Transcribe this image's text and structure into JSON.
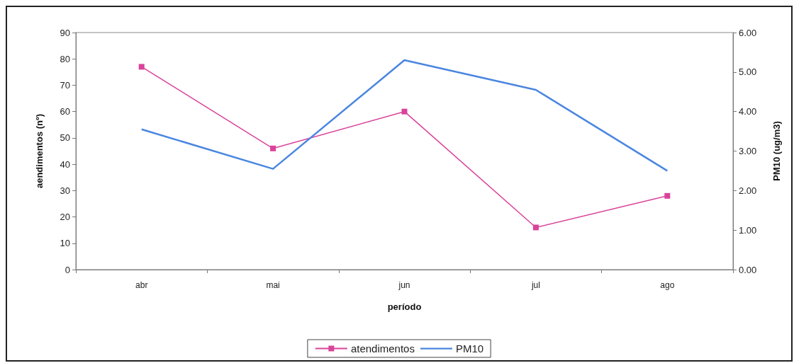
{
  "chart_data": {
    "type": "line",
    "xlabel": "período",
    "ylabel": "aendimentos (nº)",
    "y2label": "PM10 (ug/m3)",
    "categories": [
      "abr",
      "mai",
      "jun",
      "jul",
      "ago"
    ],
    "series": [
      {
        "name": "atendimentos",
        "color": "#d9439a",
        "values": [
          77,
          46,
          60,
          16,
          28
        ],
        "marker": "square"
      },
      {
        "name": "PM10",
        "color": "#4a86e0",
        "values": [
          3.55,
          2.55,
          5.3,
          4.55,
          2.5
        ],
        "axis": "y2",
        "marker": "none"
      }
    ],
    "ylim": [
      0,
      90
    ],
    "yticks": [
      0,
      10,
      20,
      30,
      40,
      50,
      60,
      70,
      80,
      90
    ],
    "y2lim": [
      0,
      6
    ],
    "y2ticks": [
      {
        "value": 0,
        "label": "0.00"
      },
      {
        "value": 1,
        "label": "1.00"
      },
      {
        "value": 2,
        "label": "2.00"
      },
      {
        "value": 3,
        "label": "3.00"
      },
      {
        "value": 4,
        "label": "4.00"
      },
      {
        "value": 5,
        "label": "5.00"
      },
      {
        "value": 6,
        "label": "6.00"
      }
    ],
    "grid": false,
    "legend": "bottom"
  }
}
